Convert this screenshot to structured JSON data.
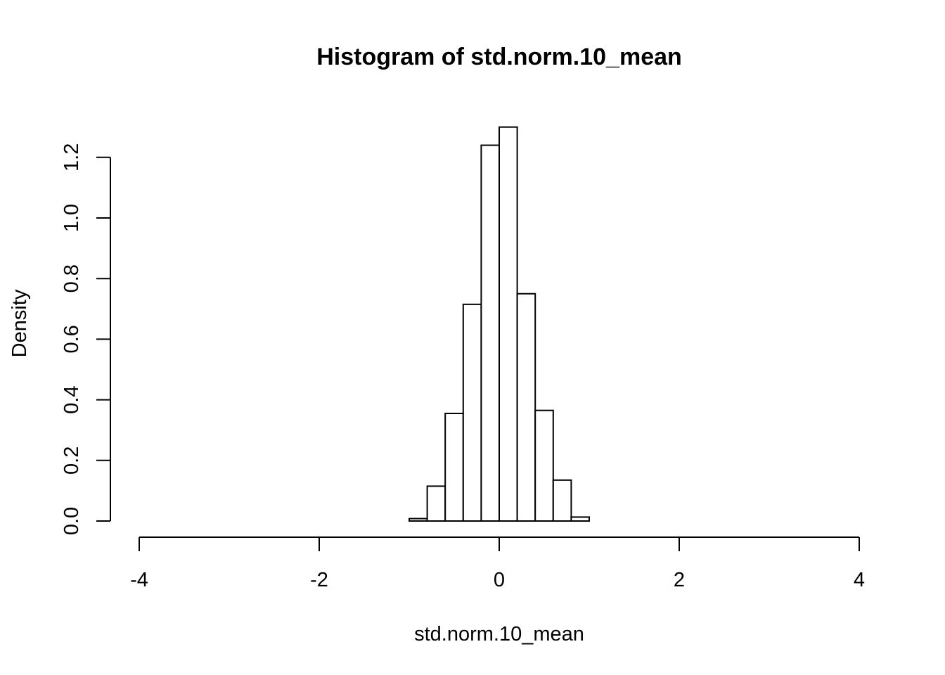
{
  "chart_data": {
    "type": "bar",
    "title": "Histogram of std.norm.10_mean",
    "xlabel": "std.norm.10_mean",
    "ylabel": "Density",
    "xlim": [
      -4,
      4
    ],
    "ylim": [
      0,
      1.3
    ],
    "x_ticks": [
      "-4",
      "-2",
      "0",
      "2",
      "4"
    ],
    "y_ticks": [
      "0.0",
      "0.2",
      "0.4",
      "0.6",
      "0.8",
      "1.0",
      "1.2"
    ],
    "bin_edges": [
      -1.0,
      -0.8,
      -0.6,
      -0.4,
      -0.2,
      0.0,
      0.2,
      0.4,
      0.6,
      0.8,
      1.0
    ],
    "values": [
      0.008,
      0.115,
      0.355,
      0.715,
      1.24,
      1.3,
      0.75,
      0.365,
      0.135,
      0.013
    ],
    "grid": false,
    "bar_fill": "#ffffff",
    "stroke_color": "#000000"
  }
}
